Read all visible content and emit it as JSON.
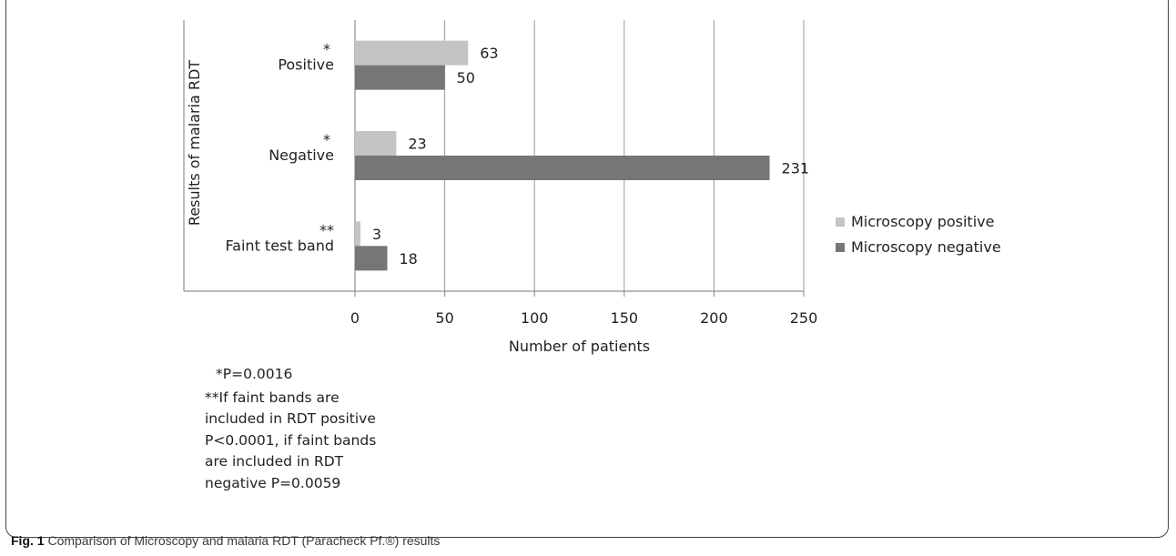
{
  "chart_data": {
    "type": "bar",
    "orientation": "horizontal",
    "categories": [
      "Positive",
      "Negative",
      "Faint test band"
    ],
    "category_markers": [
      "*",
      "*",
      "**"
    ],
    "series": [
      {
        "name": "Microscopy positive",
        "values": [
          63,
          23,
          3
        ],
        "color": "#c4c4c4"
      },
      {
        "name": "Microscopy negative",
        "values": [
          50,
          231,
          18
        ],
        "color": "#767676"
      }
    ],
    "xlabel": "Number of patients",
    "ylabel": "Results of malaria RDT",
    "xlim": [
      0,
      250
    ],
    "xticks": [
      "0",
      "50",
      "100",
      "150",
      "200",
      "250"
    ],
    "grid": "vertical",
    "legend_position": "right"
  },
  "footnotes": {
    "note1": "*P=0.0016",
    "note2_lines": [
      "**If faint bands are",
      "included in RDT positive",
      "P<0.0001, if faint bands",
      "are included in RDT",
      "negative P=0.0059"
    ]
  },
  "caption": {
    "label": "Fig. 1",
    "text": " Comparison of Microscopy and malaria RDT (Paracheck Pf.®) results"
  }
}
